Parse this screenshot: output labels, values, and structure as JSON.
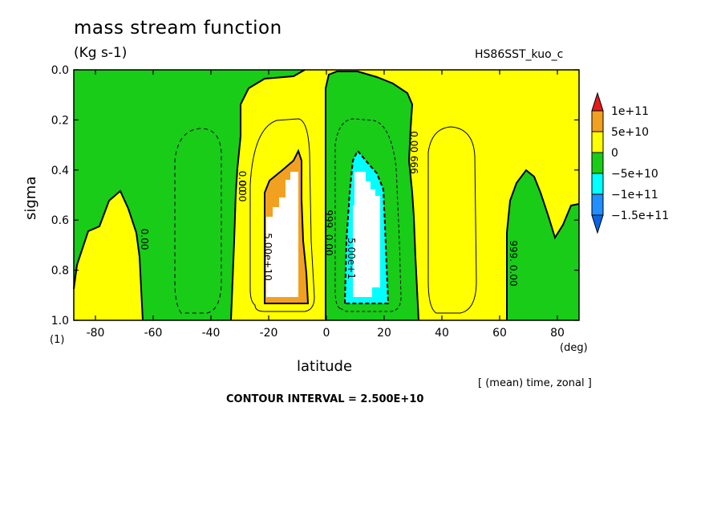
{
  "chart_data": {
    "type": "heatmap",
    "title": "mass stream function",
    "units": "(Kg s-1)",
    "run_name": "HS86SST_kuo_c",
    "xlabel": "latitude",
    "x_unit": "(deg)",
    "ylabel": "sigma",
    "y_unit": "(1)",
    "xlim": [
      -87.5,
      87.5
    ],
    "ylim": [
      1.0,
      0.0
    ],
    "x_ticks": [
      "-80",
      "-60",
      "-40",
      "-20",
      "0",
      "20",
      "40",
      "60",
      "80"
    ],
    "y_ticks": [
      "0.0",
      "0.2",
      "0.4",
      "0.6",
      "0.8",
      "1.0"
    ],
    "note": "[ (mean) time, zonal ]",
    "contour_interval": "CONTOUR INTERVAL = 2.500E+10",
    "legend": {
      "labels": [
        "1e+11",
        "5e+10",
        "0",
        "−5e+10",
        "−1e+11",
        "−1.5e+11"
      ],
      "colors": [
        "#e31a1c",
        "#f2a020",
        "#ffff00",
        "#18cc18",
        "#00ffff",
        "#1e90ff",
        "#0a64e0"
      ]
    },
    "contour_labels": [
      "0.00",
      "0.00",
      "0.00",
      "999. 0.00",
      "5.00e+10",
      "5.00e+1",
      "999. 0.00",
      "0.00 666",
      "999. 0.00"
    ],
    "regions": [
      {
        "value": "0",
        "color": "#ffff00",
        "x": [
          -87.5,
          87.5
        ],
        "y": [
          0.0,
          1.0
        ]
      },
      {
        "value": "−5e+10",
        "color": "#18cc18",
        "x": [
          -87.5,
          -30
        ],
        "y": [
          0.0,
          0.35
        ]
      },
      {
        "value": "−5e+10",
        "color": "#18cc18",
        "x": [
          -65,
          -32
        ],
        "y": [
          0.35,
          1.0
        ]
      },
      {
        "value": "−5e+10",
        "color": "#18cc18",
        "x": [
          0,
          33
        ],
        "y": [
          0.0,
          1.0
        ]
      },
      {
        "value": "5e+10",
        "color": "#f2a020",
        "x": [
          -20,
          -7
        ],
        "y": [
          0.33,
          0.94
        ]
      },
      {
        "value": "−1e+11",
        "color": "#00ffff",
        "x": [
          9,
          22
        ],
        "y": [
          0.33,
          0.94
        ]
      },
      {
        "value": "−5e+10",
        "color": "#18cc18",
        "x": [
          62,
          87.5
        ],
        "y": [
          0.4,
          1.0
        ]
      }
    ]
  }
}
